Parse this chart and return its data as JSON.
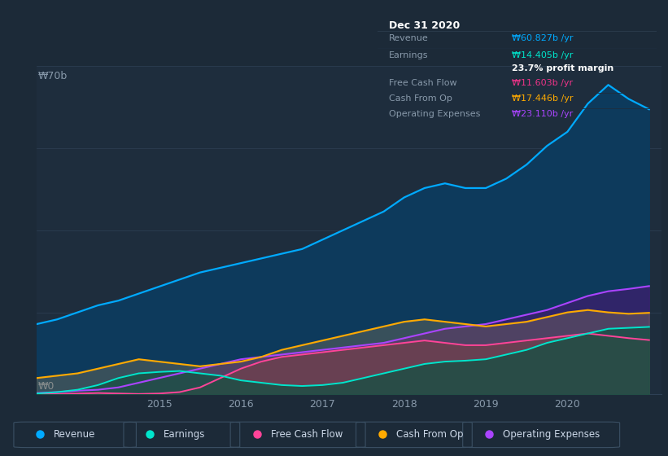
{
  "background_color": "#1c2a38",
  "plot_bg_color": "#1e2d3d",
  "grid_color": "#2e4055",
  "legend_items": [
    "Revenue",
    "Earnings",
    "Free Cash Flow",
    "Cash From Op",
    "Operating Expenses"
  ],
  "legend_colors": [
    "#00aaff",
    "#00e5cc",
    "#ff4499",
    "#ffaa00",
    "#aa44ff"
  ],
  "info_box": {
    "title": "Dec 31 2020",
    "rows": [
      {
        "label": "Revenue",
        "value": "₩60.827b /yr",
        "value_color": "#00aaff",
        "sep_below": true
      },
      {
        "label": "Earnings",
        "value": "₩14.405b /yr",
        "value_color": "#00e5cc",
        "sep_below": false
      },
      {
        "label": "",
        "value": "23.7% profit margin",
        "value_color": "#ffffff",
        "sep_below": true
      },
      {
        "label": "Free Cash Flow",
        "value": "₩11.603b /yr",
        "value_color": "#ee3388",
        "sep_below": true
      },
      {
        "label": "Cash From Op",
        "value": "₩17.446b /yr",
        "value_color": "#ffaa00",
        "sep_below": true
      },
      {
        "label": "Operating Expenses",
        "value": "₩23.110b /yr",
        "value_color": "#aa44ff",
        "sep_below": false
      }
    ]
  },
  "ylabel_text": "₩70b",
  "y0_text": "₩0",
  "ylim": [
    0,
    70
  ],
  "xlim": [
    2013.5,
    2021.15
  ],
  "x_ticks": [
    2015,
    2016,
    2017,
    2018,
    2019,
    2020
  ],
  "revenue_x": [
    2013.5,
    2013.75,
    2014.0,
    2014.25,
    2014.5,
    2014.75,
    2015.0,
    2015.25,
    2015.5,
    2015.75,
    2016.0,
    2016.25,
    2016.5,
    2016.75,
    2017.0,
    2017.25,
    2017.5,
    2017.75,
    2018.0,
    2018.25,
    2018.5,
    2018.75,
    2019.0,
    2019.25,
    2019.5,
    2019.75,
    2020.0,
    2020.25,
    2020.5,
    2020.75,
    2021.0
  ],
  "revenue_y": [
    15,
    16,
    17.5,
    19,
    20,
    21.5,
    23,
    24.5,
    26,
    27,
    28,
    29,
    30,
    31,
    33,
    35,
    37,
    39,
    42,
    44,
    45,
    44,
    44,
    46,
    49,
    53,
    56,
    62,
    66,
    63,
    60.8
  ],
  "earnings_x": [
    2013.5,
    2013.75,
    2014.0,
    2014.25,
    2014.5,
    2014.75,
    2015.0,
    2015.25,
    2015.5,
    2015.75,
    2016.0,
    2016.25,
    2016.5,
    2016.75,
    2017.0,
    2017.25,
    2017.5,
    2017.75,
    2018.0,
    2018.25,
    2018.5,
    2018.75,
    2019.0,
    2019.25,
    2019.5,
    2019.75,
    2020.0,
    2020.25,
    2020.5,
    2020.75,
    2021.0
  ],
  "earnings_y": [
    0.2,
    0.5,
    1.0,
    2.0,
    3.5,
    4.5,
    4.8,
    5.0,
    4.5,
    4.0,
    3.0,
    2.5,
    2.0,
    1.8,
    2.0,
    2.5,
    3.5,
    4.5,
    5.5,
    6.5,
    7.0,
    7.2,
    7.5,
    8.5,
    9.5,
    11,
    12,
    13,
    14,
    14.2,
    14.4
  ],
  "fcf_x": [
    2013.5,
    2013.75,
    2014.0,
    2014.25,
    2014.5,
    2014.75,
    2015.0,
    2015.25,
    2015.5,
    2015.75,
    2016.0,
    2016.25,
    2016.5,
    2016.75,
    2017.0,
    2017.25,
    2017.5,
    2017.75,
    2018.0,
    2018.25,
    2018.5,
    2018.75,
    2019.0,
    2019.25,
    2019.5,
    2019.75,
    2020.0,
    2020.25,
    2020.5,
    2020.75,
    2021.0
  ],
  "fcf_y": [
    0.1,
    0.1,
    0.2,
    0.3,
    0.2,
    0.1,
    0.2,
    0.5,
    1.5,
    3.5,
    5.5,
    7.0,
    8.0,
    8.5,
    9.0,
    9.5,
    10.0,
    10.5,
    11.0,
    11.5,
    11.0,
    10.5,
    10.5,
    11.0,
    11.5,
    12.0,
    12.5,
    13.0,
    12.5,
    12.0,
    11.6
  ],
  "cfop_x": [
    2013.5,
    2013.75,
    2014.0,
    2014.25,
    2014.5,
    2014.75,
    2015.0,
    2015.25,
    2015.5,
    2015.75,
    2016.0,
    2016.25,
    2016.5,
    2016.75,
    2017.0,
    2017.25,
    2017.5,
    2017.75,
    2018.0,
    2018.25,
    2018.5,
    2018.75,
    2019.0,
    2019.25,
    2019.5,
    2019.75,
    2020.0,
    2020.25,
    2020.5,
    2020.75,
    2021.0
  ],
  "cfop_y": [
    3.5,
    4.0,
    4.5,
    5.5,
    6.5,
    7.5,
    7.0,
    6.5,
    6.0,
    6.5,
    7.0,
    8.0,
    9.5,
    10.5,
    11.5,
    12.5,
    13.5,
    14.5,
    15.5,
    16.0,
    15.5,
    15.0,
    14.5,
    15.0,
    15.5,
    16.5,
    17.5,
    18.0,
    17.5,
    17.2,
    17.4
  ],
  "opex_x": [
    2013.5,
    2013.75,
    2014.0,
    2014.25,
    2014.5,
    2014.75,
    2015.0,
    2015.25,
    2015.5,
    2015.75,
    2016.0,
    2016.25,
    2016.5,
    2016.75,
    2017.0,
    2017.25,
    2017.5,
    2017.75,
    2018.0,
    2018.25,
    2018.5,
    2018.75,
    2019.0,
    2019.25,
    2019.5,
    2019.75,
    2020.0,
    2020.25,
    2020.5,
    2020.75,
    2021.0
  ],
  "opex_y": [
    0.3,
    0.5,
    0.8,
    1.0,
    1.5,
    2.5,
    3.5,
    4.5,
    5.5,
    6.5,
    7.5,
    8.0,
    8.5,
    9.0,
    9.5,
    10.0,
    10.5,
    11.0,
    12.0,
    13.0,
    14.0,
    14.5,
    15.0,
    16.0,
    17.0,
    18.0,
    19.5,
    21.0,
    22.0,
    22.5,
    23.1
  ]
}
